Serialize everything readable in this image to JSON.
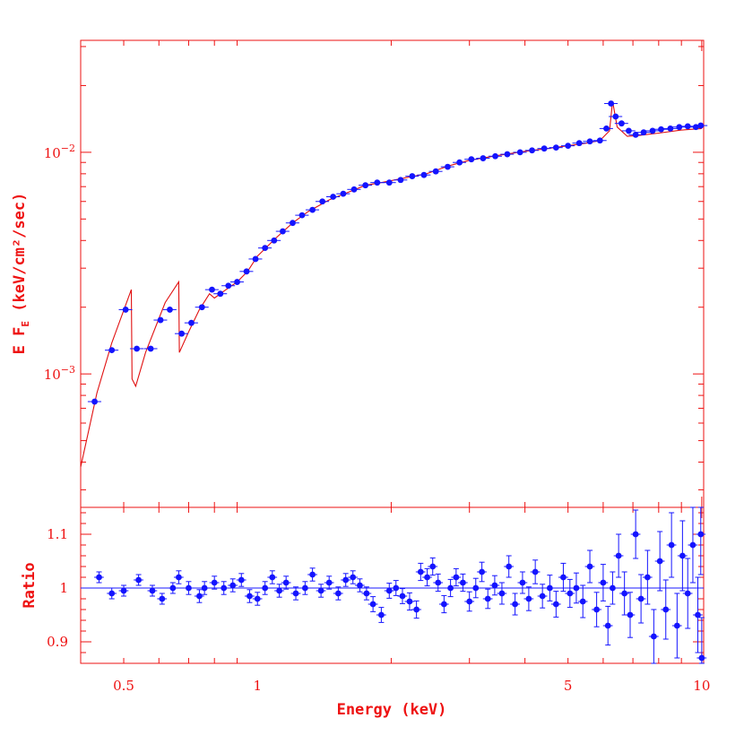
{
  "colors": {
    "axes": "#ee1111",
    "data": "#1414ff",
    "model": "#e01010"
  },
  "chart_data": [
    {
      "type": "scatter",
      "panel": "spectrum",
      "title": "",
      "xlabel": "",
      "ylabel_main": "E F",
      "ylabel_sub": "E",
      "ylabel_rest": " (keV/cm²/sec)",
      "xscale": "log",
      "yscale": "log",
      "xlim": [
        0.4,
        10.1
      ],
      "ylim": [
        0.00025,
        0.032
      ],
      "ytick_labels": [
        {
          "value": 0.01,
          "base": "10",
          "exp": "−2"
        },
        {
          "value": 0.001,
          "base": "10",
          "exp": "−3"
        }
      ],
      "series": [
        {
          "role": "data",
          "points": [
            [
              0.43,
              0.00075
            ],
            [
              0.47,
              0.00128
            ],
            [
              0.505,
              0.00195
            ],
            [
              0.535,
              0.0013
            ],
            [
              0.575,
              0.0013
            ],
            [
              0.605,
              0.00175
            ],
            [
              0.635,
              0.00195
            ],
            [
              0.675,
              0.00152
            ],
            [
              0.71,
              0.0017
            ],
            [
              0.75,
              0.002
            ],
            [
              0.79,
              0.0024
            ],
            [
              0.825,
              0.0023
            ],
            [
              0.86,
              0.0025
            ],
            [
              0.9,
              0.0026
            ],
            [
              0.945,
              0.0029
            ],
            [
              0.99,
              0.0033
            ],
            [
              1.04,
              0.0037
            ],
            [
              1.09,
              0.004
            ],
            [
              1.14,
              0.0044
            ],
            [
              1.2,
              0.0048
            ],
            [
              1.26,
              0.0052
            ],
            [
              1.33,
              0.0055
            ],
            [
              1.4,
              0.006
            ],
            [
              1.48,
              0.0063
            ],
            [
              1.56,
              0.0065
            ],
            [
              1.65,
              0.0068
            ],
            [
              1.75,
              0.0071
            ],
            [
              1.86,
              0.0073
            ],
            [
              1.98,
              0.0073
            ],
            [
              2.1,
              0.0075
            ],
            [
              2.23,
              0.0078
            ],
            [
              2.37,
              0.0079
            ],
            [
              2.52,
              0.0082
            ],
            [
              2.68,
              0.0086
            ],
            [
              2.85,
              0.009
            ],
            [
              3.03,
              0.0093
            ],
            [
              3.22,
              0.0094
            ],
            [
              3.43,
              0.0096
            ],
            [
              3.65,
              0.0098
            ],
            [
              3.9,
              0.01
            ],
            [
              4.15,
              0.0102
            ],
            [
              4.42,
              0.0104
            ],
            [
              4.7,
              0.0105
            ],
            [
              5.0,
              0.0107
            ],
            [
              5.3,
              0.011
            ],
            [
              5.6,
              0.0112
            ],
            [
              5.9,
              0.0113
            ],
            [
              6.1,
              0.0128
            ],
            [
              6.25,
              0.0166
            ],
            [
              6.4,
              0.0145
            ],
            [
              6.6,
              0.0135
            ],
            [
              6.85,
              0.0125
            ],
            [
              7.1,
              0.012
            ],
            [
              7.4,
              0.0123
            ],
            [
              7.75,
              0.0125
            ],
            [
              8.1,
              0.0127
            ],
            [
              8.5,
              0.0128
            ],
            [
              8.9,
              0.013
            ],
            [
              9.3,
              0.0131
            ],
            [
              9.7,
              0.013
            ],
            [
              9.95,
              0.0132
            ]
          ]
        },
        {
          "role": "model",
          "points": [
            [
              0.4,
              0.00038
            ],
            [
              0.435,
              0.00082
            ],
            [
              0.47,
              0.00138
            ],
            [
              0.52,
              0.0024
            ],
            [
              0.522,
              0.00095
            ],
            [
              0.532,
              0.00088
            ],
            [
              0.56,
              0.00125
            ],
            [
              0.62,
              0.0021
            ],
            [
              0.665,
              0.0026
            ],
            [
              0.667,
              0.00125
            ],
            [
              0.7,
              0.00155
            ],
            [
              0.74,
              0.00195
            ],
            [
              0.78,
              0.0023
            ],
            [
              0.8,
              0.0022
            ],
            [
              0.85,
              0.0024
            ],
            [
              0.9,
              0.0026
            ],
            [
              0.95,
              0.0029
            ],
            [
              1.0,
              0.0034
            ],
            [
              1.1,
              0.0041
            ],
            [
              1.2,
              0.0048
            ],
            [
              1.3,
              0.0054
            ],
            [
              1.45,
              0.0061
            ],
            [
              1.6,
              0.0066
            ],
            [
              1.75,
              0.0071
            ],
            [
              1.9,
              0.0073
            ],
            [
              2.1,
              0.0076
            ],
            [
              2.4,
              0.008
            ],
            [
              2.7,
              0.0087
            ],
            [
              3.0,
              0.0092
            ],
            [
              3.5,
              0.0097
            ],
            [
              4.0,
              0.0101
            ],
            [
              4.5,
              0.0104
            ],
            [
              5.0,
              0.0107
            ],
            [
              5.5,
              0.011
            ],
            [
              5.9,
              0.0113
            ],
            [
              6.2,
              0.0125
            ],
            [
              6.3,
              0.017
            ],
            [
              6.45,
              0.013
            ],
            [
              6.8,
              0.0118
            ],
            [
              7.2,
              0.0119
            ],
            [
              8.0,
              0.0122
            ],
            [
              9.0,
              0.0126
            ],
            [
              10.0,
              0.0128
            ]
          ]
        }
      ]
    },
    {
      "type": "scatter",
      "panel": "ratio",
      "title": "",
      "xlabel": "Energy (keV)",
      "ylabel": "Ratio",
      "xscale": "log",
      "xlim": [
        0.4,
        10.1
      ],
      "ylim": [
        0.86,
        1.15
      ],
      "xtick_labels": [
        {
          "value": 0.5,
          "text": "0.5"
        },
        {
          "value": 1,
          "text": "1"
        },
        {
          "value": 5,
          "text": "5"
        },
        {
          "value": 10,
          "text": "10"
        }
      ],
      "ytick_labels": [
        {
          "value": 1.1,
          "text": "1.1"
        },
        {
          "value": 1.0,
          "text": "1"
        },
        {
          "value": 0.9,
          "text": "0.9"
        }
      ],
      "reference_line": 1.0,
      "points": [
        [
          0.44,
          1.02,
          0.01
        ],
        [
          0.47,
          0.99,
          0.01
        ],
        [
          0.5,
          0.995,
          0.01
        ],
        [
          0.54,
          1.015,
          0.01
        ],
        [
          0.58,
          0.995,
          0.01
        ],
        [
          0.61,
          0.98,
          0.01
        ],
        [
          0.645,
          1.0,
          0.01
        ],
        [
          0.665,
          1.02,
          0.012
        ],
        [
          0.7,
          1.0,
          0.012
        ],
        [
          0.74,
          0.985,
          0.012
        ],
        [
          0.76,
          1.0,
          0.012
        ],
        [
          0.8,
          1.01,
          0.012
        ],
        [
          0.84,
          1.0,
          0.012
        ],
        [
          0.88,
          1.005,
          0.012
        ],
        [
          0.92,
          1.015,
          0.012
        ],
        [
          0.96,
          0.985,
          0.012
        ],
        [
          1.0,
          0.98,
          0.012
        ],
        [
          1.04,
          1.0,
          0.012
        ],
        [
          1.08,
          1.02,
          0.012
        ],
        [
          1.12,
          0.995,
          0.012
        ],
        [
          1.16,
          1.01,
          0.012
        ],
        [
          1.22,
          0.99,
          0.012
        ],
        [
          1.28,
          1.0,
          0.012
        ],
        [
          1.33,
          1.025,
          0.012
        ],
        [
          1.39,
          0.995,
          0.012
        ],
        [
          1.45,
          1.01,
          0.012
        ],
        [
          1.52,
          0.99,
          0.012
        ],
        [
          1.58,
          1.015,
          0.012
        ],
        [
          1.64,
          1.02,
          0.012
        ],
        [
          1.7,
          1.005,
          0.012
        ],
        [
          1.76,
          0.99,
          0.012
        ],
        [
          1.82,
          0.97,
          0.014
        ],
        [
          1.9,
          0.95,
          0.014
        ],
        [
          1.98,
          0.995,
          0.014
        ],
        [
          2.05,
          1.0,
          0.014
        ],
        [
          2.12,
          0.985,
          0.014
        ],
        [
          2.2,
          0.975,
          0.016
        ],
        [
          2.28,
          0.96,
          0.016
        ],
        [
          2.33,
          1.03,
          0.016
        ],
        [
          2.41,
          1.02,
          0.016
        ],
        [
          2.48,
          1.04,
          0.016
        ],
        [
          2.55,
          1.01,
          0.016
        ],
        [
          2.63,
          0.97,
          0.016
        ],
        [
          2.72,
          1.0,
          0.016
        ],
        [
          2.8,
          1.02,
          0.016
        ],
        [
          2.9,
          1.01,
          0.016
        ],
        [
          3.0,
          0.975,
          0.018
        ],
        [
          3.1,
          1.0,
          0.018
        ],
        [
          3.2,
          1.03,
          0.018
        ],
        [
          3.3,
          0.98,
          0.018
        ],
        [
          3.42,
          1.005,
          0.018
        ],
        [
          3.55,
          0.99,
          0.02
        ],
        [
          3.68,
          1.04,
          0.02
        ],
        [
          3.8,
          0.97,
          0.02
        ],
        [
          3.95,
          1.01,
          0.02
        ],
        [
          4.08,
          0.98,
          0.022
        ],
        [
          4.22,
          1.03,
          0.022
        ],
        [
          4.38,
          0.985,
          0.022
        ],
        [
          4.55,
          1.0,
          0.024
        ],
        [
          4.7,
          0.97,
          0.024
        ],
        [
          4.88,
          1.02,
          0.026
        ],
        [
          5.05,
          0.99,
          0.026
        ],
        [
          5.22,
          1.0,
          0.028
        ],
        [
          5.4,
          0.975,
          0.03
        ],
        [
          5.6,
          1.04,
          0.03
        ],
        [
          5.8,
          0.96,
          0.032
        ],
        [
          6.0,
          1.01,
          0.034
        ],
        [
          6.15,
          0.93,
          0.036
        ],
        [
          6.3,
          1.0,
          0.03
        ],
        [
          6.5,
          1.06,
          0.04
        ],
        [
          6.7,
          0.99,
          0.04
        ],
        [
          6.9,
          0.95,
          0.042
        ],
        [
          7.1,
          1.1,
          0.045
        ],
        [
          7.3,
          0.98,
          0.045
        ],
        [
          7.55,
          1.02,
          0.05
        ],
        [
          7.8,
          0.91,
          0.05
        ],
        [
          8.05,
          1.05,
          0.055
        ],
        [
          8.3,
          0.96,
          0.055
        ],
        [
          8.55,
          1.08,
          0.06
        ],
        [
          8.8,
          0.93,
          0.06
        ],
        [
          9.05,
          1.06,
          0.065
        ],
        [
          9.3,
          0.99,
          0.065
        ],
        [
          9.55,
          1.08,
          0.07
        ],
        [
          9.8,
          0.95,
          0.07
        ],
        [
          9.95,
          1.1,
          0.075
        ],
        [
          10.0,
          0.87,
          0.075
        ]
      ]
    }
  ]
}
